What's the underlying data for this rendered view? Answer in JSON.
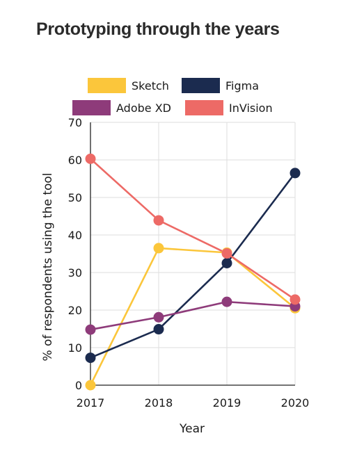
{
  "title": "Prototyping through the years",
  "chart_data": {
    "type": "line",
    "title": "Prototyping through the years",
    "xlabel": "Year",
    "ylabel": "% of respondents using the tool",
    "x": [
      "2017",
      "2018",
      "2019",
      "2020"
    ],
    "ylim": [
      0,
      70
    ],
    "yticks": [
      0,
      10,
      20,
      30,
      40,
      50,
      60,
      70
    ],
    "grid": true,
    "legend": "top",
    "series": [
      {
        "name": "Sketch",
        "color": "#fbc63b",
        "values": [
          0,
          36.5,
          35.3,
          20.5
        ]
      },
      {
        "name": "Figma",
        "color": "#1b2b4f",
        "values": [
          7.3,
          14.9,
          32.5,
          56.5
        ]
      },
      {
        "name": "Adobe XD",
        "color": "#8e3b7a",
        "values": [
          14.8,
          18.1,
          22.2,
          21
        ]
      },
      {
        "name": "InVision",
        "color": "#ed6a66",
        "values": [
          60.3,
          43.9,
          35.1,
          22.8
        ]
      }
    ]
  }
}
